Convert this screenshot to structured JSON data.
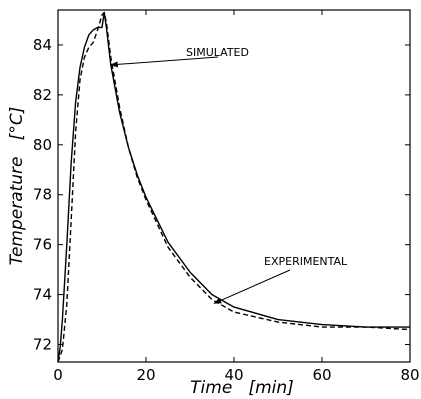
{
  "chart_data": {
    "type": "line",
    "title": "",
    "xlabel": "Time   [min]",
    "ylabel": "Temperature   [°C]",
    "xlim": [
      0,
      80
    ],
    "ylim": [
      71.3,
      85.4
    ],
    "x_ticks": [
      0,
      20,
      40,
      60,
      80
    ],
    "y_ticks": [
      72,
      74,
      76,
      78,
      80,
      82,
      84
    ],
    "grid": false,
    "series": [
      {
        "name": "SIMULATED",
        "style": "solid",
        "x": [
          0,
          0.5,
          1,
          2,
          3,
          4,
          5,
          6,
          7,
          8,
          9,
          10,
          10.5,
          11,
          12,
          14,
          16,
          18,
          20,
          25,
          30,
          35,
          40,
          50,
          60,
          70,
          80
        ],
        "y": [
          71.3,
          71.9,
          73.0,
          76.0,
          79.3,
          81.7,
          83.1,
          83.9,
          84.4,
          84.6,
          84.7,
          84.7,
          85.3,
          84.7,
          83.2,
          81.3,
          79.9,
          78.8,
          77.9,
          76.1,
          74.9,
          74.0,
          73.5,
          73.0,
          72.8,
          72.7,
          72.7
        ]
      },
      {
        "name": "EXPERIMENTAL",
        "style": "dashed",
        "x": [
          0,
          1,
          2,
          3,
          4,
          5,
          6,
          7,
          8,
          9,
          10,
          10.5,
          11,
          12,
          14,
          16,
          18,
          20,
          25,
          30,
          35,
          40,
          50,
          60,
          70,
          80
        ],
        "y": [
          71.3,
          71.8,
          73.6,
          77.0,
          80.5,
          82.6,
          83.5,
          83.9,
          84.1,
          84.6,
          85.2,
          85.3,
          84.9,
          83.5,
          81.5,
          79.9,
          78.7,
          77.8,
          75.9,
          74.7,
          73.8,
          73.3,
          72.9,
          72.7,
          72.7,
          72.6
        ]
      }
    ],
    "annotations": [
      {
        "text": "SIMULATED",
        "target_x": 12.0,
        "target_y": 83.2
      },
      {
        "text": "EXPERIMENTAL",
        "target_x": 35.5,
        "target_y": 73.65
      }
    ]
  }
}
